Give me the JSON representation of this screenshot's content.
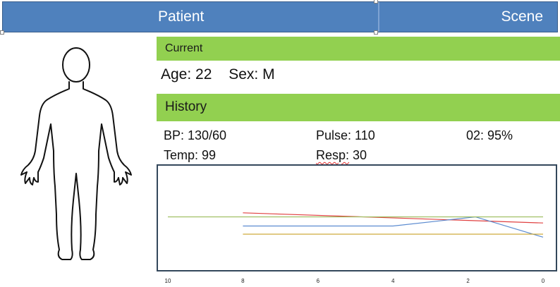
{
  "header": {
    "patient_label": "Patient",
    "scene_label": "Scene"
  },
  "current": {
    "label": "Current",
    "age": "Age: 22",
    "sex": "Sex: M"
  },
  "history": {
    "label": "History",
    "bp": "BP: 130/60",
    "pulse": "Pulse: 110",
    "o2": "02: 95%",
    "temp": "Temp: 99",
    "resp_label": "Resp:",
    "resp_value": " 30"
  },
  "colors": {
    "header_blue": "#4f81bd",
    "section_green": "#92d050"
  },
  "icons": {
    "body": "human-body-outline-icon"
  },
  "chart_data": {
    "type": "line",
    "x_ticks": [
      "10",
      "8",
      "6",
      "4",
      "2",
      "0"
    ],
    "x_values": [
      10,
      8,
      6,
      4,
      2,
      0
    ],
    "xlim": [
      10,
      0
    ],
    "grid": false,
    "legend": "none",
    "series": [
      {
        "color": "#e04040",
        "points": [
          [
            8,
            0.55
          ],
          [
            0,
            0.45
          ]
        ]
      },
      {
        "color": "#5b8bd0",
        "points": [
          [
            8,
            0.42
          ],
          [
            4,
            0.42
          ],
          [
            1.8,
            0.51
          ],
          [
            0,
            0.31
          ]
        ]
      },
      {
        "color": "#9bbb59",
        "points": [
          [
            10,
            0.51
          ],
          [
            0,
            0.51
          ]
        ]
      },
      {
        "color": "#c9a227",
        "points": [
          [
            8,
            0.34
          ],
          [
            0,
            0.34
          ]
        ]
      }
    ]
  }
}
